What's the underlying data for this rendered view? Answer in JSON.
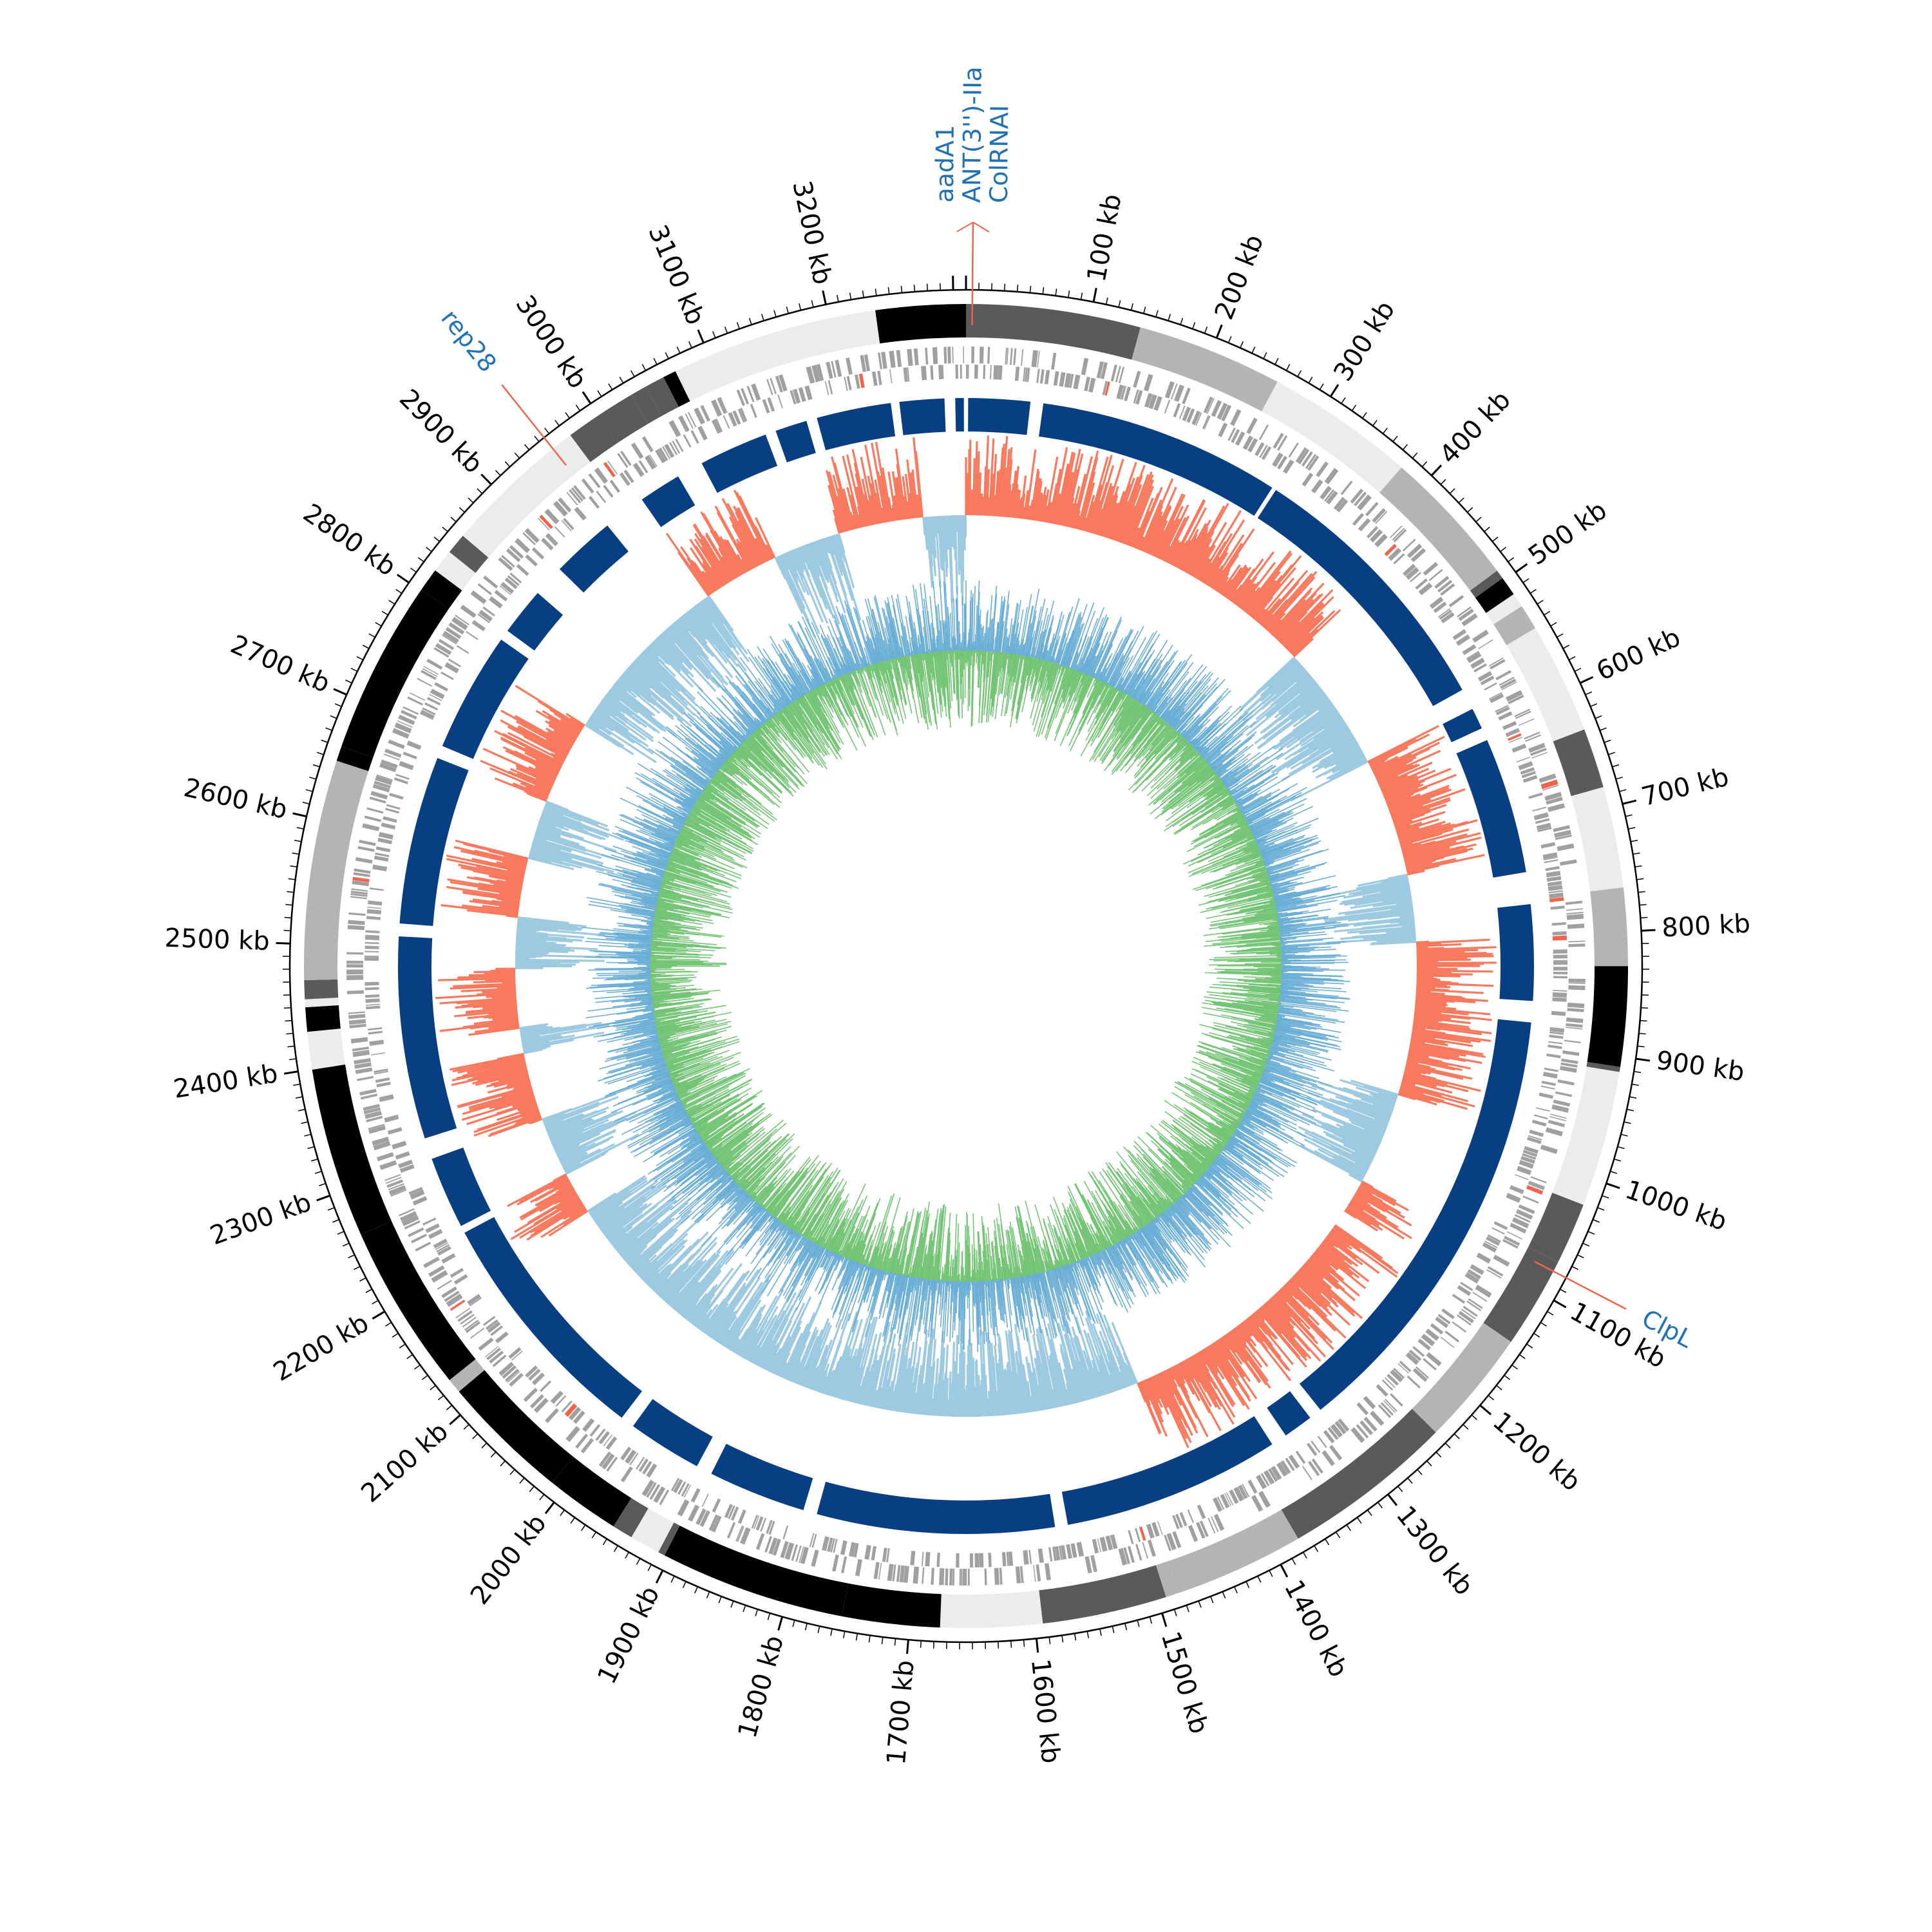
{
  "genome": {
    "length_kb": 3310,
    "tick_labels": [
      "100 kb",
      "200 kb",
      "300 kb",
      "400 kb",
      "500 kb",
      "600 kb",
      "700 kb",
      "800 kb",
      "900 kb",
      "1000 kb",
      "1100 kb",
      "1200 kb",
      "1300 kb",
      "1400 kb",
      "1500 kb",
      "1600 kb",
      "1700 kb",
      "1800 kb",
      "1900 kb",
      "2000 kb",
      "2100 kb",
      "2200 kb",
      "2300 kb",
      "2400 kb",
      "2500 kb",
      "2600 kb",
      "2700 kb",
      "2800 kb",
      "2900 kb",
      "3000 kb",
      "3100 kb",
      "3200 kb"
    ]
  },
  "colors": {
    "contig_shades": [
      "#000000",
      "#5a5a5a",
      "#b4b4b4",
      "#ececec"
    ],
    "gene_gray": "#a0a0a0",
    "gene_red": "#f0644b",
    "blast_blue": "#083f82",
    "gc_positive": "#f8795d",
    "gc_negative": "#9ecae1",
    "skew_blue": "#6baed6",
    "skew_green": "#74c476",
    "annotation_line": "#f0644b",
    "annotation_text": "#2171b5"
  },
  "annotations": [
    {
      "labels": [
        "aadA1",
        "ANT(3'')-IIa",
        "ColRNAI"
      ],
      "position_kb": 5
    },
    {
      "labels": [
        "rep28"
      ],
      "position_kb": 2955
    },
    {
      "labels": [
        "ClpL"
      ],
      "position_kb": 1080
    }
  ],
  "tracks": [
    "contigs",
    "genes",
    "blast-hits",
    "gc-content",
    "gc-skew"
  ]
}
